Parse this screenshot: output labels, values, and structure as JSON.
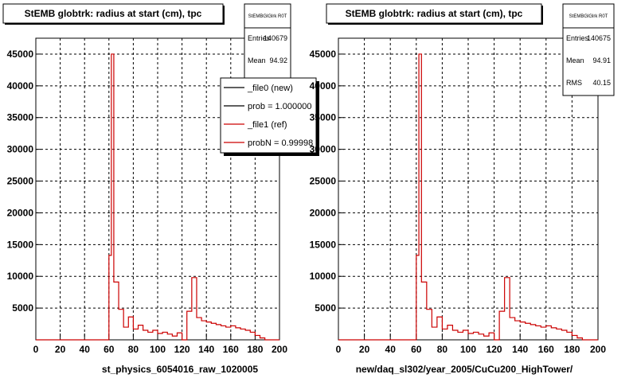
{
  "chart_data": [
    {
      "type": "histogram",
      "title": "StEMB globtrk: radius at start (cm), tpc",
      "xlabel": "st_physics_6054016_raw_1020005",
      "ylabel": "",
      "xlim": [
        0,
        200
      ],
      "ylim": [
        0,
        47500
      ],
      "x_ticks": [
        "0",
        "20",
        "40",
        "60",
        "80",
        "100",
        "120",
        "140",
        "160",
        "180",
        "200"
      ],
      "y_ticks": [
        "5000",
        "10000",
        "15000",
        "20000",
        "25000",
        "30000",
        "35000",
        "40000",
        "45000"
      ],
      "y_tick_values": [
        5000,
        10000,
        15000,
        20000,
        25000,
        30000,
        35000,
        40000,
        45000
      ],
      "grid": true,
      "stats": {
        "header": "StEMBGlGlrk R0T",
        "rows": [
          {
            "label": "Entries",
            "value": "140679"
          },
          {
            "label": "Mean",
            "value": "94.92"
          }
        ]
      },
      "legend": {
        "position": "top-right",
        "entries": [
          {
            "label": "_file0 (new)",
            "color": "#000000"
          },
          {
            "label": "prob = 1.000000",
            "color": "#000000"
          },
          {
            "label": "_file1 (ref)",
            "color": "#cc0000"
          },
          {
            "label": "probN = 0.99998",
            "color": "#cc0000"
          }
        ]
      },
      "series": [
        {
          "color": "#cc0000",
          "bin_edges": [
            0,
            4,
            8,
            12,
            16,
            20,
            24,
            28,
            32,
            36,
            40,
            44,
            48,
            52,
            56,
            60,
            62,
            64,
            66,
            68,
            70,
            72,
            74,
            76,
            78,
            80,
            82,
            84,
            86,
            88,
            90,
            92,
            94,
            96,
            98,
            100,
            102,
            104,
            106,
            108,
            110,
            112,
            114,
            116,
            118,
            120,
            122,
            124,
            126,
            128,
            130,
            132,
            134,
            136,
            138,
            140,
            142,
            144,
            146,
            148,
            150,
            152,
            154,
            156,
            158,
            160,
            162,
            164,
            166,
            168,
            170,
            172,
            174,
            176,
            178,
            180,
            182,
            184,
            186,
            188,
            190,
            192,
            194,
            196,
            198,
            200
          ],
          "values": [
            0,
            0,
            0,
            0,
            0,
            0,
            0,
            0,
            0,
            0,
            0,
            0,
            0,
            0,
            0,
            13300,
            45000,
            9100,
            9100,
            4800,
            4800,
            2000,
            2000,
            3600,
            3600,
            1700,
            1700,
            2300,
            2300,
            1500,
            1500,
            1200,
            1200,
            1500,
            1500,
            1000,
            1000,
            1200,
            1200,
            900,
            900,
            600,
            600,
            1100,
            1100,
            0,
            0,
            4500,
            4500,
            9800,
            9800,
            3500,
            3500,
            3000,
            3000,
            2800,
            2800,
            2600,
            2600,
            2400,
            2400,
            2200,
            2200,
            2000,
            2000,
            2200,
            2200,
            1900,
            1900,
            1700,
            1700,
            1500,
            1500,
            1200,
            1200,
            700,
            700,
            300,
            300,
            0,
            0,
            0,
            0,
            0,
            0
          ]
        }
      ]
    },
    {
      "type": "histogram",
      "title": "StEMB globtrk: radius at start (cm), tpc",
      "xlabel": "new/daq_sl302/year_2005/CuCu200_HighTower/",
      "ylabel": "",
      "xlim": [
        0,
        200
      ],
      "ylim": [
        0,
        47500
      ],
      "x_ticks": [
        "0",
        "20",
        "40",
        "60",
        "80",
        "100",
        "120",
        "140",
        "160",
        "180",
        "200"
      ],
      "y_ticks": [
        "5000",
        "10000",
        "15000",
        "20000",
        "25000",
        "30000",
        "35000",
        "40000",
        "45000"
      ],
      "y_tick_values": [
        5000,
        10000,
        15000,
        20000,
        25000,
        30000,
        35000,
        40000,
        45000
      ],
      "grid": true,
      "stats": {
        "header": "StEMBGlGlrk R0T",
        "rows": [
          {
            "label": "Entries",
            "value": "140675"
          },
          {
            "label": "Mean",
            "value": "94.91"
          },
          {
            "label": "RMS",
            "value": "40.15"
          }
        ]
      },
      "series": [
        {
          "color": "#cc0000",
          "bin_edges": [
            0,
            4,
            8,
            12,
            16,
            20,
            24,
            28,
            32,
            36,
            40,
            44,
            48,
            52,
            56,
            60,
            62,
            64,
            66,
            68,
            70,
            72,
            74,
            76,
            78,
            80,
            82,
            84,
            86,
            88,
            90,
            92,
            94,
            96,
            98,
            100,
            102,
            104,
            106,
            108,
            110,
            112,
            114,
            116,
            118,
            120,
            122,
            124,
            126,
            128,
            130,
            132,
            134,
            136,
            138,
            140,
            142,
            144,
            146,
            148,
            150,
            152,
            154,
            156,
            158,
            160,
            162,
            164,
            166,
            168,
            170,
            172,
            174,
            176,
            178,
            180,
            182,
            184,
            186,
            188,
            190,
            192,
            194,
            196,
            198,
            200
          ],
          "values": [
            0,
            0,
            0,
            0,
            0,
            0,
            0,
            0,
            0,
            0,
            0,
            0,
            0,
            0,
            0,
            13300,
            45000,
            9100,
            9100,
            4800,
            4800,
            2000,
            2000,
            3600,
            3600,
            1700,
            1700,
            2300,
            2300,
            1500,
            1500,
            1200,
            1200,
            1500,
            1500,
            1000,
            1000,
            1200,
            1200,
            900,
            900,
            600,
            600,
            1100,
            1100,
            0,
            0,
            4500,
            4500,
            9800,
            9800,
            3500,
            3500,
            3000,
            3000,
            2800,
            2800,
            2600,
            2600,
            2400,
            2400,
            2200,
            2200,
            2000,
            2000,
            2200,
            2200,
            1900,
            1900,
            1700,
            1700,
            1500,
            1500,
            1200,
            1200,
            700,
            700,
            300,
            300,
            0,
            0,
            0,
            0,
            0,
            0
          ]
        }
      ]
    }
  ]
}
